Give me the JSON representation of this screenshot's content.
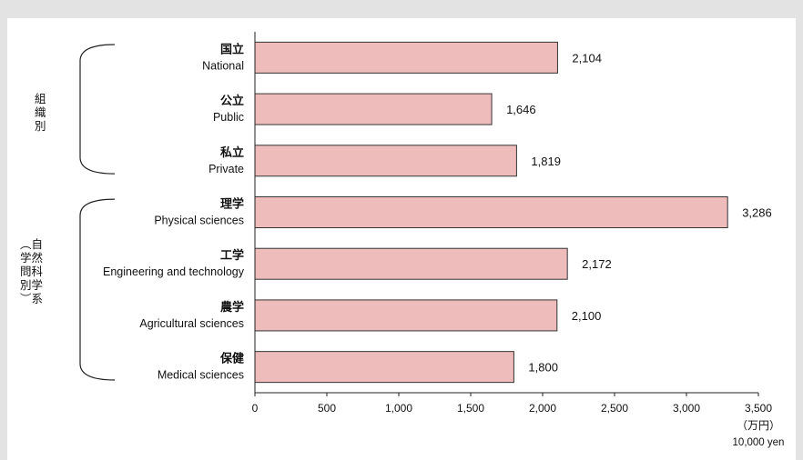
{
  "chart_data": {
    "type": "bar",
    "orientation": "horizontal",
    "categories": [
      {
        "jp": "国立",
        "en": "National"
      },
      {
        "jp": "公立",
        "en": "Public"
      },
      {
        "jp": "私立",
        "en": "Private"
      },
      {
        "jp": "理学",
        "en": "Physical sciences"
      },
      {
        "jp": "工学",
        "en": "Engineering and technology"
      },
      {
        "jp": "農学",
        "en": "Agricultural sciences"
      },
      {
        "jp": "保健",
        "en": "Medical sciences"
      }
    ],
    "values": [
      2104,
      1646,
      1819,
      3286,
      2172,
      2100,
      1800
    ],
    "value_labels": [
      "2,104",
      "1,646",
      "1,819",
      "3,286",
      "2,172",
      "2,100",
      "1,800"
    ],
    "groups": [
      {
        "label": [
          "組",
          "織",
          "別"
        ],
        "rows": [
          0,
          2
        ]
      },
      {
        "label": [
          "︵自",
          "学然",
          "問科",
          "別学",
          "︶系"
        ],
        "rows": [
          3,
          6
        ]
      }
    ],
    "xlim": [
      0,
      3500
    ],
    "xticks": [
      0,
      500,
      1000,
      1500,
      2000,
      2500,
      3000,
      3500
    ],
    "xtick_labels": [
      "0",
      "500",
      "1,000",
      "1,500",
      "2,000",
      "2,500",
      "3,000",
      "3,500"
    ],
    "unit_jp": "（万円）",
    "unit_en": "10,000 yen",
    "colors": {
      "bar_fill": "#efbcbc",
      "bar_stroke": "#333333",
      "plot_bg": "#ffffff",
      "page_bg": "#e3e3e3",
      "text": "#111111"
    }
  }
}
